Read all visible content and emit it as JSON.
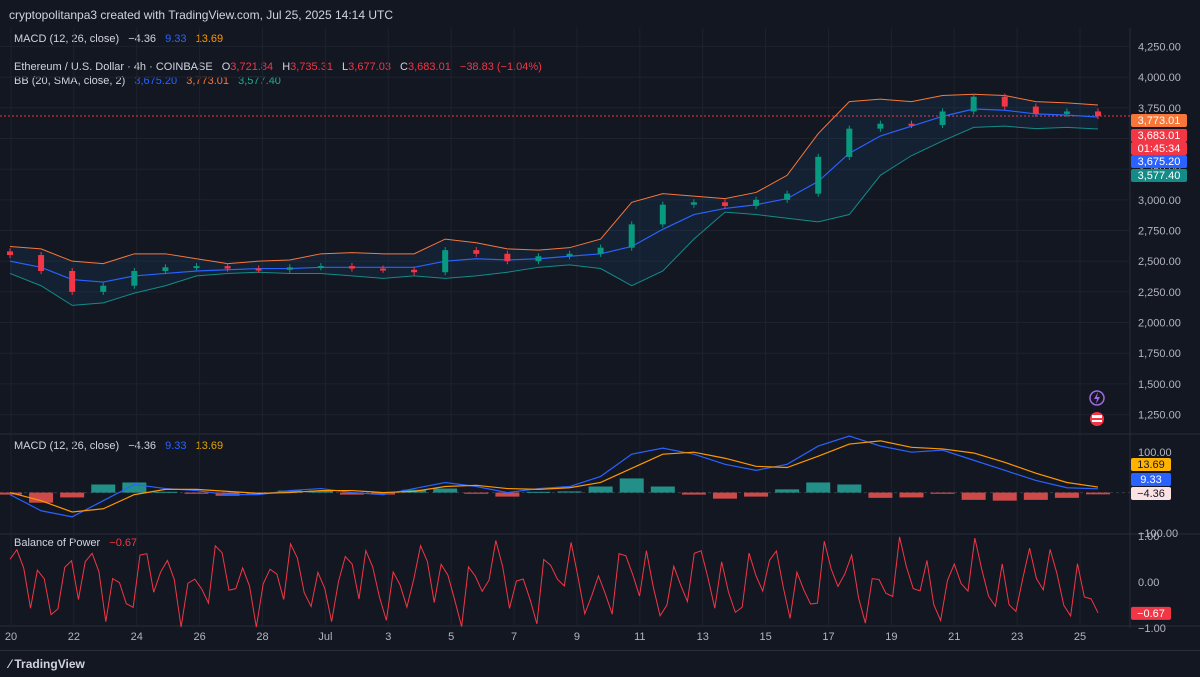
{
  "header": {
    "created_by": "cryptopolitanpa3 created with TradingView.com, Jul 25, 2025 14:14 UTC"
  },
  "macd_top": {
    "name": "MACD (12, 26, close)",
    "hist": "−4.36",
    "macd": "9.33",
    "signal": "13.69"
  },
  "price_legend": {
    "symbol": "Ethereum / U.S. Dollar · 4h · COINBASE",
    "o_label": "O",
    "o": "3,721.84",
    "h_label": "H",
    "h": "3,735.31",
    "l_label": "L",
    "l": "3,677.03",
    "c_label": "C",
    "c": "3,683.01",
    "change": "−38.83 (−1.04%)"
  },
  "bb_legend": {
    "name": "BB (20, SMA, close, 2)",
    "basis": "3,675.20",
    "upper": "3,773.01",
    "lower": "3,577.40"
  },
  "macd_pane": {
    "name": "MACD (12, 26, close)",
    "hist": "−4.36",
    "macd": "9.33",
    "signal": "13.69"
  },
  "bop_pane": {
    "name": "Balance of Power",
    "value": "−0.67"
  },
  "price_axis_ticks": [
    "4,250.00",
    "4,000.00",
    "3,750.00",
    "3,500.00",
    "3,250.00",
    "3,000.00",
    "2,750.00",
    "2,500.00",
    "2,250.00",
    "2,000.00",
    "1,750.00",
    "1,500.00",
    "1,250.00"
  ],
  "price_badges": [
    {
      "text": "3,773.01",
      "color": "#f7773b"
    },
    {
      "text": "3,683.01",
      "color": "#f23645"
    },
    {
      "text": "01:45:34",
      "color": "#f23645"
    },
    {
      "text": "3,675.20",
      "color": "#2962ff"
    },
    {
      "text": "3,577.40",
      "color": "#138c88"
    }
  ],
  "macd_axis_ticks": [
    "100.00",
    "−100.00"
  ],
  "macd_badges": [
    {
      "text": "13.69",
      "color": "#ffb300",
      "fg": "#131722"
    },
    {
      "text": "9.33",
      "color": "#2962ff",
      "fg": "#ffffff"
    },
    {
      "text": "−4.36",
      "color": "#fbe3e5",
      "fg": "#131722"
    }
  ],
  "bop_axis_ticks": [
    "1.00",
    "0.00",
    "−1.00"
  ],
  "bop_badge": {
    "text": "−0.67",
    "color": "#f23645"
  },
  "time_axis_ticks": [
    "20",
    "22",
    "24",
    "26",
    "28",
    "Jul",
    "3",
    "5",
    "7",
    "9",
    "11",
    "13",
    "15",
    "17",
    "19",
    "21",
    "23",
    "25"
  ],
  "footer": {
    "logo": "TradingView"
  },
  "chart_data": [
    {
      "type": "candlestick",
      "title": "Ethereum / U.S. Dollar · 4h · COINBASE",
      "ylim": [
        1100,
        4400
      ],
      "x_range": [
        "Jun 20",
        "Jul 25"
      ],
      "series": [
        {
          "name": "close",
          "x": [
            0,
            1,
            2,
            3,
            4,
            5,
            6,
            7,
            8,
            9,
            10,
            11,
            12,
            13,
            14,
            15,
            16,
            17,
            18,
            19,
            20,
            21,
            22,
            23,
            24,
            25,
            26,
            27,
            28,
            29,
            30,
            31,
            32,
            33,
            34,
            35
          ],
          "values": [
            2550,
            2420,
            2250,
            2300,
            2420,
            2450,
            2460,
            2440,
            2430,
            2450,
            2460,
            2440,
            2430,
            2410,
            2590,
            2560,
            2500,
            2540,
            2560,
            2610,
            2800,
            2960,
            2980,
            2950,
            3000,
            3050,
            3350,
            3580,
            3620,
            3610,
            3720,
            3840,
            3760,
            3700,
            3720,
            3683
          ]
        }
      ],
      "bb_upper": [
        2620,
        2600,
        2500,
        2480,
        2560,
        2560,
        2520,
        2480,
        2500,
        2510,
        2560,
        2570,
        2560,
        2560,
        2680,
        2650,
        2600,
        2590,
        2610,
        2680,
        2980,
        3050,
        3030,
        3010,
        3060,
        3200,
        3540,
        3800,
        3820,
        3800,
        3850,
        3860,
        3850,
        3800,
        3790,
        3773
      ],
      "bb_basis": [
        2500,
        2450,
        2350,
        2330,
        2380,
        2400,
        2420,
        2430,
        2440,
        2440,
        2450,
        2450,
        2450,
        2450,
        2500,
        2520,
        2510,
        2520,
        2540,
        2560,
        2620,
        2760,
        2880,
        2930,
        2960,
        3010,
        3150,
        3380,
        3520,
        3600,
        3680,
        3740,
        3730,
        3700,
        3690,
        3675
      ],
      "bb_lower": [
        2400,
        2300,
        2140,
        2160,
        2240,
        2300,
        2380,
        2400,
        2410,
        2400,
        2400,
        2380,
        2360,
        2380,
        2360,
        2380,
        2410,
        2450,
        2470,
        2440,
        2300,
        2420,
        2680,
        2900,
        2880,
        2850,
        2820,
        2880,
        3200,
        3360,
        3480,
        3590,
        3600,
        3580,
        3590,
        3577
      ]
    },
    {
      "type": "line",
      "title": "MACD (12, 26, close)",
      "ylim": [
        -100,
        140
      ],
      "series": [
        {
          "name": "MACD",
          "values": [
            -5,
            -45,
            -60,
            -20,
            20,
            10,
            5,
            -5,
            -5,
            5,
            10,
            0,
            -5,
            10,
            25,
            15,
            0,
            10,
            15,
            40,
            95,
            110,
            95,
            70,
            55,
            70,
            115,
            140,
            115,
            100,
            105,
            80,
            55,
            30,
            12,
            9.33
          ]
        },
        {
          "name": "Signal",
          "values": [
            0,
            -20,
            -48,
            -40,
            -5,
            8,
            8,
            3,
            -2,
            0,
            5,
            5,
            0,
            3,
            15,
            18,
            10,
            8,
            12,
            25,
            60,
            95,
            100,
            85,
            65,
            62,
            90,
            120,
            128,
            112,
            108,
            98,
            75,
            48,
            25,
            13.69
          ]
        },
        {
          "name": "Histogram",
          "values": [
            -5,
            -25,
            -12,
            20,
            25,
            2,
            -3,
            -8,
            -3,
            5,
            5,
            -5,
            -5,
            7,
            10,
            -3,
            -10,
            2,
            3,
            15,
            35,
            15,
            -5,
            -15,
            -10,
            8,
            25,
            20,
            -13,
            -12,
            -3,
            -18,
            -20,
            -18,
            -13,
            -4.36
          ]
        }
      ]
    },
    {
      "type": "line",
      "title": "Balance of Power",
      "ylim": [
        -1,
        1
      ],
      "series": [
        {
          "name": "Balance of Power",
          "values": [
            -0.67
          ]
        }
      ]
    }
  ]
}
